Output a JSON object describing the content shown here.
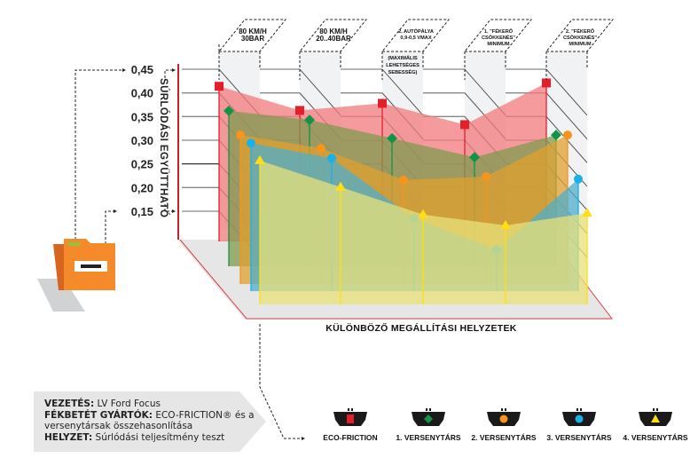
{
  "chart_data": {
    "type": "area",
    "style": "3d-layered-area",
    "title": "",
    "xlabel": "KÜLÖNBÖZŐ MEGÁLLÍTÁSI HELYZETEK",
    "ylabel": "SÚRLÓDÁSI EGYÜTTHATÓ",
    "ylim": [
      0.15,
      0.45
    ],
    "yticks": [
      "0,45",
      "0,40",
      "0,35",
      "0,30",
      "0,25",
      "0,20",
      "0,15"
    ],
    "ytick_values": [
      0.45,
      0.4,
      0.35,
      0.3,
      0.25,
      0.2,
      0.15
    ],
    "grid": true,
    "legend_position": "bottom-right",
    "categories": [
      {
        "lines": [
          "80 KM/H",
          "30BAR"
        ],
        "note": []
      },
      {
        "lines": [
          "80 KM/H",
          "20..40BAR"
        ],
        "note": []
      },
      {
        "lines": [
          "2. AUTÓPÁLYA",
          "0,9-0,5 VMAX"
        ],
        "note": [
          "(MAXIMÁLIS",
          "LEHETSÉGES",
          "SEBESSÉG)"
        ]
      },
      {
        "lines": [
          "1. \"FÉKERŐ",
          "CSÖKKENÉS\"",
          "MINIMUM"
        ],
        "note": []
      },
      {
        "lines": [
          "2. \"FÉKERŐ",
          "CSÖKKENÉS\"",
          "MINIMUM"
        ],
        "note": []
      }
    ],
    "series": [
      {
        "name": "ECO-FRICTION",
        "marker": "square",
        "color": "#e3202a",
        "fill": "#f27a7c",
        "values": [
          0.414,
          0.363,
          0.378,
          0.333,
          0.421
        ]
      },
      {
        "name": "1. VERSENYTÁRS",
        "marker": "diamond",
        "color": "#129446",
        "fill": "#7f9a4f",
        "values": [
          0.362,
          0.343,
          0.304,
          0.264,
          0.311
        ]
      },
      {
        "name": "2. VERSENYTÁRS",
        "marker": "circle",
        "color": "#f7941d",
        "fill": "#e0a030",
        "values": [
          0.311,
          0.283,
          0.216,
          0.223,
          0.311
        ]
      },
      {
        "name": "3. VERSENYTÁRS",
        "marker": "circle",
        "color": "#1ab0e8",
        "fill": "#4eaecc",
        "values": [
          0.294,
          0.262,
          0.135,
          0.069,
          0.218
        ]
      },
      {
        "name": "4. VERSENYTÁRS",
        "marker": "triangle",
        "color": "#ffde17",
        "fill": "#e8e07a",
        "values": [
          0.257,
          0.201,
          0.143,
          0.12,
          0.146
        ]
      }
    ]
  },
  "info": {
    "driving_label": "VEZETÉS:",
    "driving_value": "LV Ford Focus",
    "manufacturers_label": "FÉKBETÉT GYÁRTÓK:",
    "manufacturers_value": "ECO-FRICTION® és a versenytársak összehasonlítása",
    "situation_label": "HELYZET:",
    "situation_value": "Súrlódási teljesítmény teszt"
  },
  "icons": {
    "folder": "folder-icon"
  }
}
